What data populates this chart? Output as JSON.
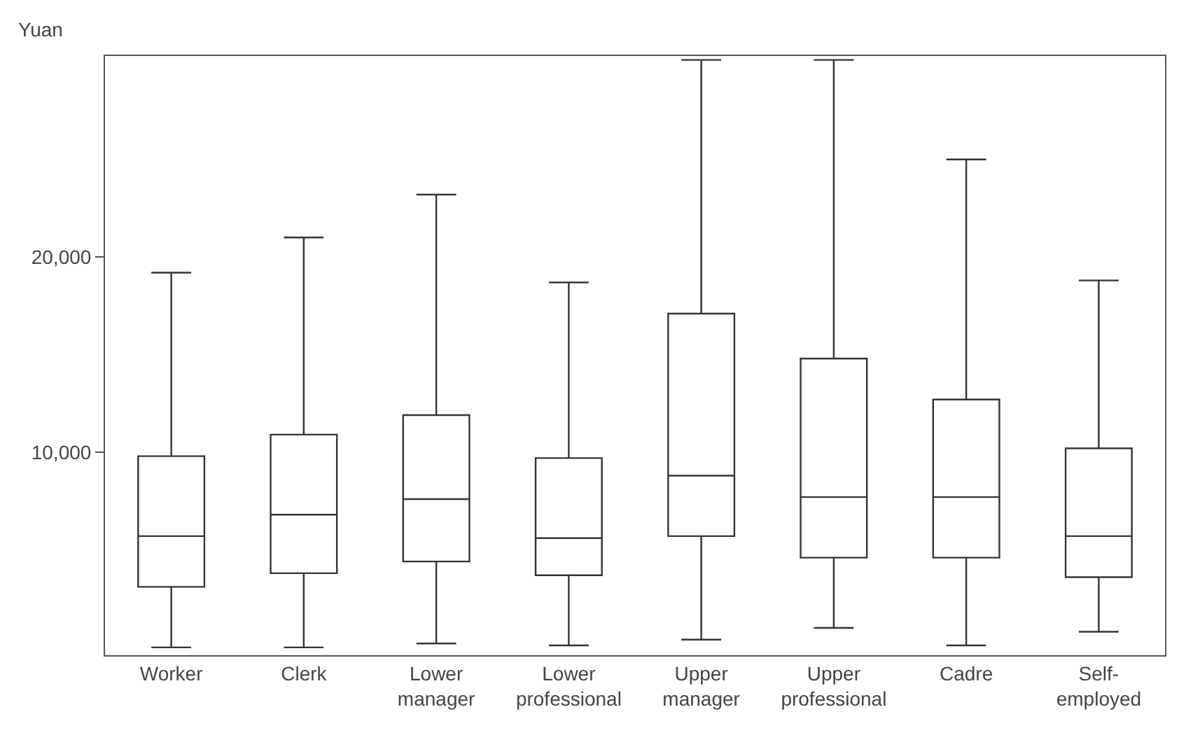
{
  "chart_data": {
    "type": "box",
    "ylabel": "Yuan",
    "categories": [
      "Worker",
      "Clerk",
      "Lower manager",
      "Lower professional",
      "Upper manager",
      "Upper professional",
      "Cadre",
      "Self-employed"
    ],
    "boxes": [
      {
        "low": 0,
        "q1": 3100,
        "median": 5700,
        "q3": 9800,
        "high": 19200
      },
      {
        "low": 0,
        "q1": 3800,
        "median": 6800,
        "q3": 10900,
        "high": 21000
      },
      {
        "low": 200,
        "q1": 4400,
        "median": 7600,
        "q3": 11900,
        "high": 23200
      },
      {
        "low": 100,
        "q1": 3700,
        "median": 5600,
        "q3": 9700,
        "high": 18700
      },
      {
        "low": 400,
        "q1": 5700,
        "median": 8800,
        "q3": 17100,
        "high": 30100
      },
      {
        "low": 1000,
        "q1": 4600,
        "median": 7700,
        "q3": 14800,
        "high": 30100
      },
      {
        "low": 100,
        "q1": 4600,
        "median": 7700,
        "q3": 12700,
        "high": 25000
      },
      {
        "low": 800,
        "q1": 3600,
        "median": 5700,
        "q3": 10200,
        "high": 18800
      }
    ],
    "color": "#333333",
    "ylim": [
      -400,
      30300
    ],
    "yticks": [
      {
        "value": 10000,
        "label": "10,000"
      },
      {
        "value": 20000,
        "label": "20,000"
      }
    ],
    "legend": false
  }
}
